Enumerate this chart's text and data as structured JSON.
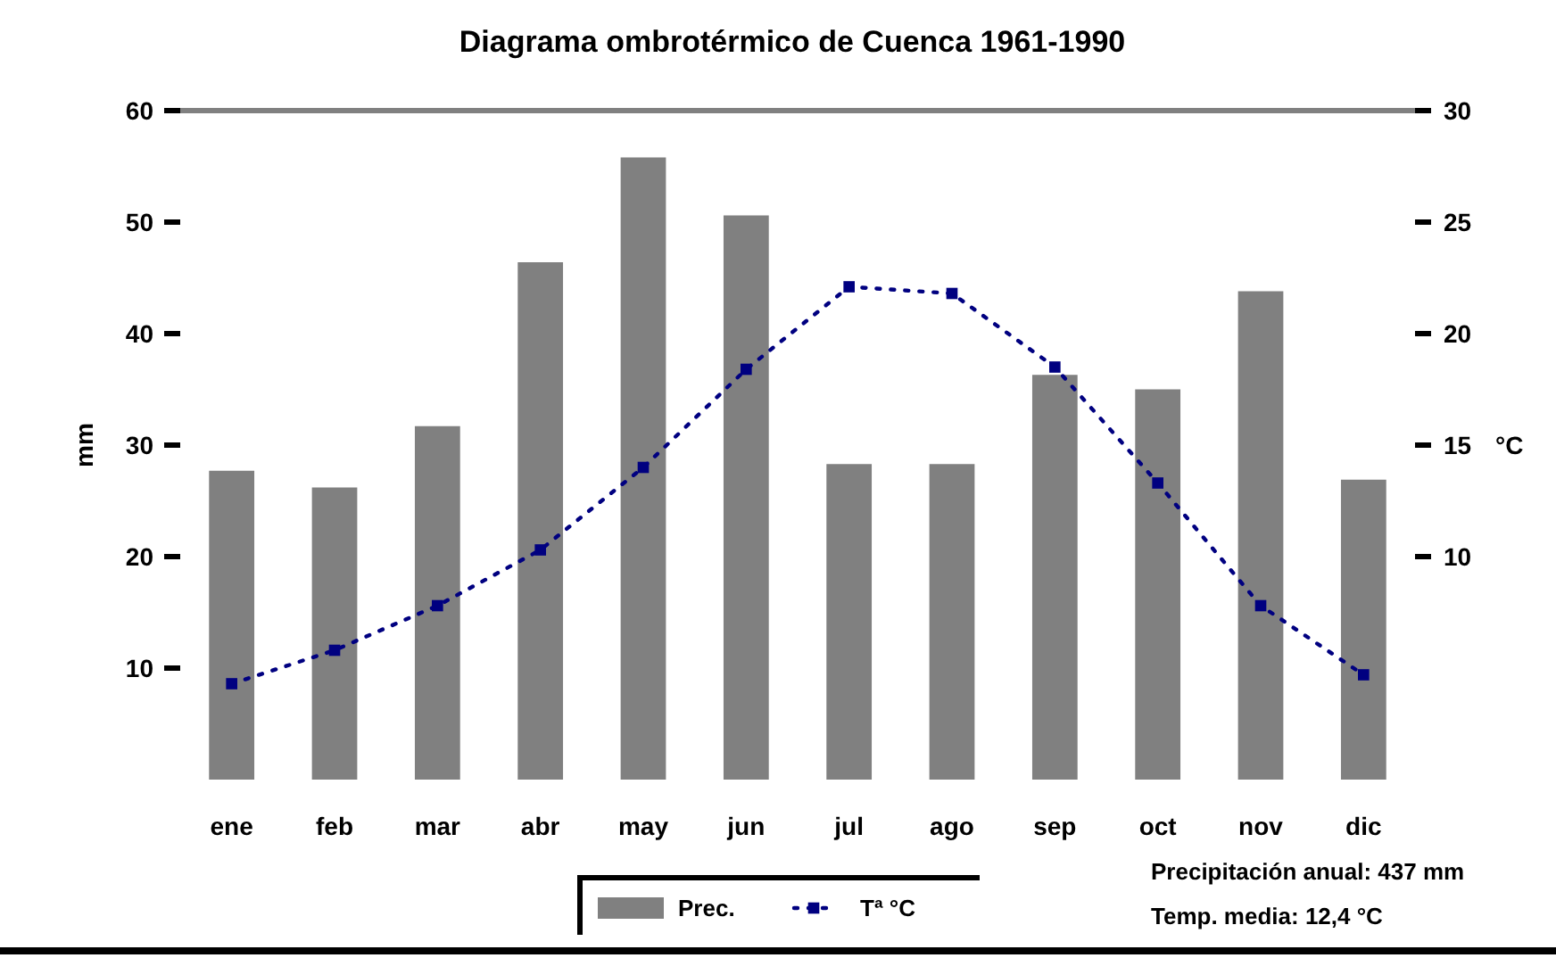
{
  "chart_data": {
    "type": "bar",
    "title": "Diagrama ombrotérmico de Cuenca 1961-1990",
    "ylabel": "mm",
    "y2label": "°C",
    "categories": [
      "ene",
      "feb",
      "mar",
      "abr",
      "may",
      "jun",
      "jul",
      "ago",
      "sep",
      "oct",
      "nov",
      "dic"
    ],
    "series": [
      {
        "name": "Prec.",
        "color": "#808080",
        "values": [
          27.7,
          26.2,
          31.7,
          46.4,
          55.8,
          50.6,
          28.3,
          28.3,
          36.3,
          35.0,
          43.8,
          26.9
        ]
      },
      {
        "name": "Tª °C",
        "type": "line",
        "axis": "y2",
        "color": "#000080",
        "values": [
          4.3,
          5.8,
          7.8,
          10.3,
          14.0,
          18.4,
          22.1,
          21.8,
          18.5,
          13.3,
          7.8,
          4.7
        ]
      }
    ],
    "ylim": [
      0,
      60
    ],
    "yticks": [
      10,
      20,
      30,
      40,
      50,
      60
    ],
    "y2lim": [
      0,
      30
    ],
    "y2ticks": [
      10,
      15,
      20,
      25,
      30
    ],
    "marker": "square",
    "line_style": "dotted",
    "legend": "bottom",
    "annotations": [
      "Precipitación anual: 437 mm",
      "Temp. media: 12,4 °C"
    ]
  }
}
